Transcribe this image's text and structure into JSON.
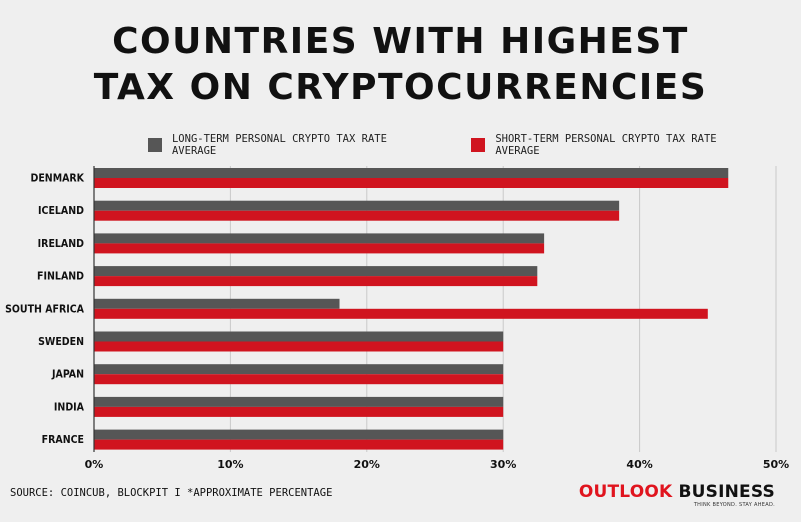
{
  "title": {
    "line1": "COUNTRIES WITH HIGHEST",
    "line2": "TAX ON CRYPTOCURRENCIES"
  },
  "colors": {
    "long_term": "#565656",
    "short_term": "#d0141f",
    "grid": "#c9c9c9",
    "brand_red": "#e0141e"
  },
  "chart_data": {
    "type": "bar",
    "orientation": "horizontal",
    "categories": [
      "DENMARK",
      "ICELAND",
      "IRELAND",
      "FINLAND",
      "SOUTH AFRICA",
      "SWEDEN",
      "JAPAN",
      "INDIA",
      "FRANCE"
    ],
    "series": [
      {
        "name": "LONG-TERM PERSONAL CRYPTO TAX RATE AVERAGE",
        "values": [
          46.5,
          38.5,
          33,
          32.5,
          18,
          30,
          30,
          30,
          30
        ]
      },
      {
        "name": "SHORT-TERM PERSONAL CRYPTO TAX RATE AVERAGE",
        "values": [
          46.5,
          38.5,
          33,
          32.5,
          45,
          30,
          30,
          30,
          30
        ]
      }
    ],
    "xlim": [
      0,
      50
    ],
    "xticks": [
      0,
      10,
      20,
      30,
      40,
      50
    ],
    "xtick_labels": [
      "0%",
      "10%",
      "20%",
      "30%",
      "40%",
      "50%"
    ],
    "grid": "vertical",
    "legend_position": "top"
  },
  "footer": {
    "source": "SOURCE: COINCUB, BLOCKPIT I *APPROXIMATE PERCENTAGE",
    "brand_part1": "OUTLOOK",
    "brand_part2": "BUSINESS",
    "tagline": "THINK BEYOND. STAY AHEAD."
  }
}
